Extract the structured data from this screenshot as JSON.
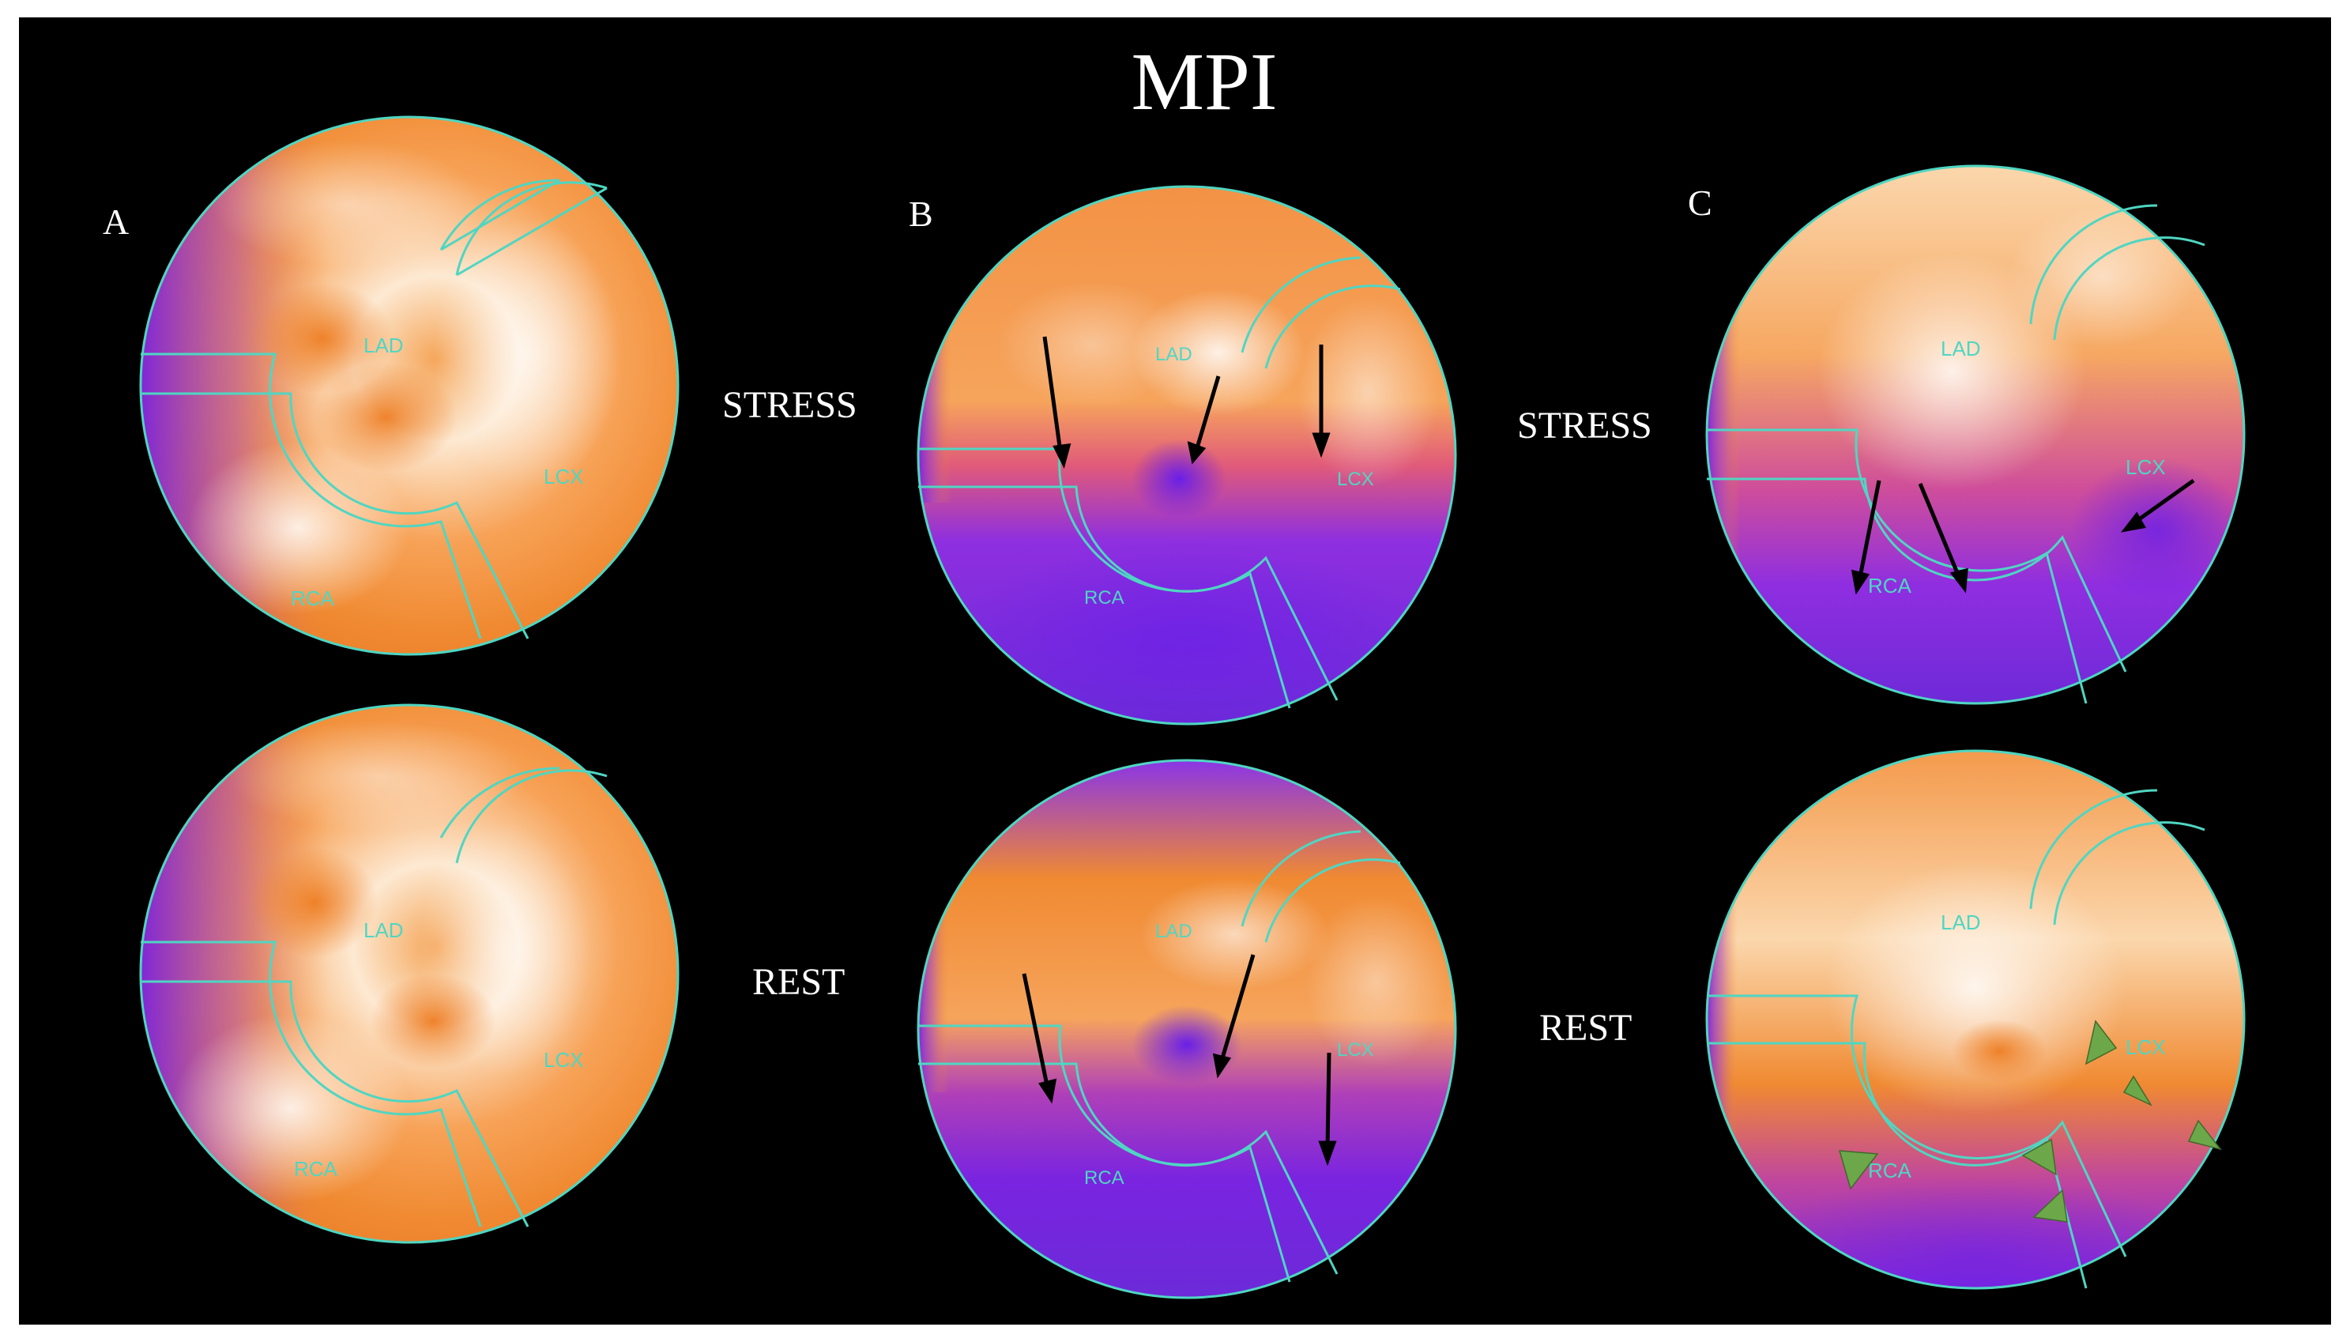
{
  "figure": {
    "title": "MPI",
    "panels": [
      {
        "letter": "A",
        "views": [
          {
            "view": "STRESS",
            "labels": {
              "lad": "LAD",
              "lcx": "LCX",
              "rca": "RCA"
            }
          },
          {
            "view": "REST",
            "labels": {
              "lad": "LAD",
              "lcx": "LCX",
              "rca": "RCA"
            }
          }
        ]
      },
      {
        "letter": "B",
        "views": [
          {
            "view": "STRESS",
            "labels": {
              "lad": "LAD",
              "lcx": "LCX",
              "rca": "RCA"
            }
          },
          {
            "view": "REST",
            "labels": {
              "lad": "LAD",
              "lcx": "LCX",
              "rca": "RCA"
            }
          }
        ]
      },
      {
        "letter": "C",
        "views": [
          {
            "view": "STRESS",
            "labels": {
              "lad": "LAD",
              "lcx": "LCX",
              "rca": "RCA"
            }
          },
          {
            "view": "REST",
            "labels": {
              "lad": "LAD",
              "lcx": "LCX",
              "rca": "RCA"
            }
          }
        ]
      }
    ],
    "colors": {
      "background": "#000000",
      "frame": "#ffffff",
      "perfusion_high": "#fff1e0",
      "perfusion_normal": "#f28a2e",
      "perfusion_low": "#7a1fd6",
      "segment_lines": "#4fd6c2",
      "arrows": "#000000",
      "arrowheads": "#6ca84a"
    }
  }
}
